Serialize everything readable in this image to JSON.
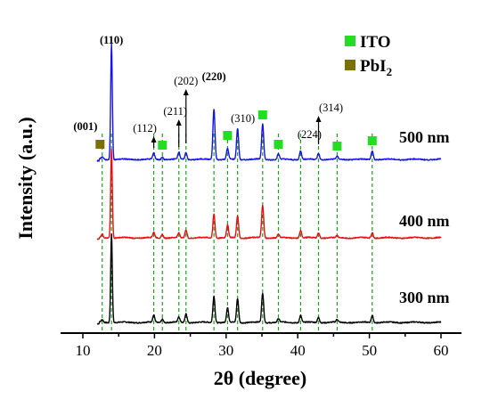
{
  "chart_data": {
    "type": "line",
    "xlabel": "2θ (degree)",
    "ylabel": "Intensity (a.u.)",
    "xlim": [
      7,
      61
    ],
    "x_ticks": [
      10,
      20,
      30,
      40,
      50,
      60
    ],
    "grid": false,
    "legend_position": "top-right",
    "legend": [
      {
        "label": "ITO",
        "marker": "square",
        "color": "#22dd22"
      },
      {
        "label": "PbI",
        "sub": "2",
        "marker": "square",
        "color": "#7a7200"
      }
    ],
    "series": [
      {
        "name": "300 nm",
        "color": "#000000",
        "offset": 0,
        "peaks": [
          [
            12.7,
            0.03
          ],
          [
            14.0,
            1.0
          ],
          [
            19.9,
            0.08
          ],
          [
            21.1,
            0.04
          ],
          [
            23.4,
            0.06
          ],
          [
            24.4,
            0.1
          ],
          [
            28.3,
            0.3
          ],
          [
            30.2,
            0.16
          ],
          [
            31.6,
            0.27
          ],
          [
            35.1,
            0.33
          ],
          [
            37.3,
            0.04
          ],
          [
            40.4,
            0.08
          ],
          [
            42.9,
            0.06
          ],
          [
            45.5,
            0.03
          ],
          [
            50.4,
            0.08
          ]
        ]
      },
      {
        "name": "400 nm",
        "color": "#e81010",
        "offset": 1,
        "peaks": [
          [
            12.7,
            0.04
          ],
          [
            14.0,
            1.0
          ],
          [
            19.9,
            0.06
          ],
          [
            21.1,
            0.04
          ],
          [
            23.4,
            0.05
          ],
          [
            24.4,
            0.09
          ],
          [
            28.3,
            0.27
          ],
          [
            30.2,
            0.14
          ],
          [
            31.6,
            0.25
          ],
          [
            35.1,
            0.37
          ],
          [
            37.3,
            0.04
          ],
          [
            40.4,
            0.08
          ],
          [
            42.9,
            0.06
          ],
          [
            45.5,
            0.02
          ],
          [
            50.4,
            0.06
          ]
        ]
      },
      {
        "name": "500 nm",
        "color": "#1414e8",
        "offset": 2,
        "peaks": [
          [
            12.7,
            0.03
          ],
          [
            14.0,
            1.3
          ],
          [
            19.9,
            0.07
          ],
          [
            21.1,
            0.03
          ],
          [
            23.4,
            0.08
          ],
          [
            24.4,
            0.08
          ],
          [
            28.3,
            0.57
          ],
          [
            30.2,
            0.12
          ],
          [
            31.6,
            0.35
          ],
          [
            35.1,
            0.4
          ],
          [
            37.3,
            0.06
          ],
          [
            40.4,
            0.1
          ],
          [
            42.9,
            0.07
          ],
          [
            45.5,
            0.03
          ],
          [
            50.4,
            0.1
          ]
        ]
      }
    ],
    "reference_lines_x": [
      12.7,
      14.0,
      19.9,
      21.1,
      23.4,
      24.4,
      28.3,
      30.2,
      31.6,
      35.1,
      37.3,
      40.4,
      42.9,
      45.5,
      50.4
    ],
    "ito_markers_x": [
      21.1,
      30.2,
      35.1,
      37.3,
      45.5,
      50.4
    ],
    "pbi2_markers_x": [
      12.4
    ],
    "peak_annotations": [
      {
        "text": "(001)",
        "x": 12.6,
        "color": "#158a8a",
        "bold": true
      },
      {
        "text": "(110)",
        "x": 14.0,
        "color": "#e81010",
        "bold": true
      },
      {
        "text": "(112)",
        "x": 19.9,
        "color": "#000000",
        "bold": false
      },
      {
        "text": "(211)",
        "x": 23.4,
        "color": "#000000",
        "bold": false
      },
      {
        "text": "(202)",
        "x": 24.4,
        "color": "#000000",
        "bold": false
      },
      {
        "text": "(220)",
        "x": 28.3,
        "color": "#e81010",
        "bold": true
      },
      {
        "text": "(310)",
        "x": 31.6,
        "color": "#000000",
        "bold": false
      },
      {
        "text": "(224)",
        "x": 40.4,
        "color": "#000000",
        "bold": false
      },
      {
        "text": "(314)",
        "x": 42.9,
        "color": "#000000",
        "bold": false
      }
    ]
  }
}
